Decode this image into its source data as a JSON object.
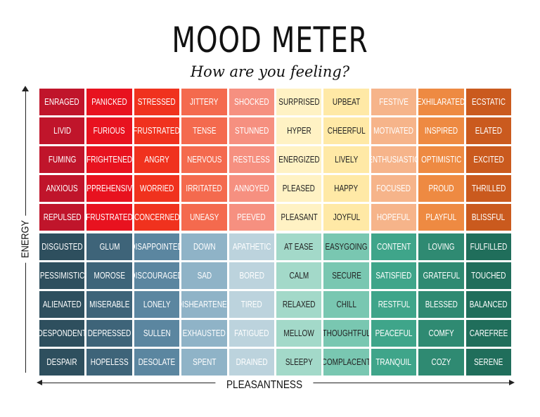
{
  "title": "MOOD METER",
  "subtitle": "How are you feeling?",
  "axes": {
    "y_label": "ENERGY",
    "x_label": "PLEASANTNESS"
  },
  "columns": 10,
  "cells": [
    {
      "label": "ENRAGED",
      "bg": "#c0152b",
      "fg": "#ffffff"
    },
    {
      "label": "PANICKED",
      "bg": "#e8121f",
      "fg": "#ffffff"
    },
    {
      "label": "STRESSED",
      "bg": "#f0321e",
      "fg": "#ffffff"
    },
    {
      "label": "JITTERY",
      "bg": "#f46a4e",
      "fg": "#ffffff"
    },
    {
      "label": "SHOCKED",
      "bg": "#f69080",
      "fg": "#ffffff"
    },
    {
      "label": "SURPRISED",
      "bg": "#fff2c4",
      "fg": "#222222"
    },
    {
      "label": "UPBEAT",
      "bg": "#ffe9a6",
      "fg": "#222222"
    },
    {
      "label": "FESTIVE",
      "bg": "#f6b48a",
      "fg": "#ffffff"
    },
    {
      "label": "EXHILARATED",
      "bg": "#ee8a42",
      "fg": "#ffffff"
    },
    {
      "label": "ECSTATIC",
      "bg": "#ca5a1e",
      "fg": "#ffffff"
    },
    {
      "label": "LIVID",
      "bg": "#c0152b",
      "fg": "#ffffff"
    },
    {
      "label": "FURIOUS",
      "bg": "#e8121f",
      "fg": "#ffffff"
    },
    {
      "label": "FRUSTRATED",
      "bg": "#f0321e",
      "fg": "#ffffff"
    },
    {
      "label": "TENSE",
      "bg": "#f46a4e",
      "fg": "#ffffff"
    },
    {
      "label": "STUNNED",
      "bg": "#f69080",
      "fg": "#ffffff"
    },
    {
      "label": "HYPER",
      "bg": "#fff2c4",
      "fg": "#222222"
    },
    {
      "label": "CHEERFUL",
      "bg": "#ffe9a6",
      "fg": "#222222"
    },
    {
      "label": "MOTIVATED",
      "bg": "#f6b48a",
      "fg": "#ffffff"
    },
    {
      "label": "INSPIRED",
      "bg": "#ee8a42",
      "fg": "#ffffff"
    },
    {
      "label": "ELATED",
      "bg": "#ca5a1e",
      "fg": "#ffffff"
    },
    {
      "label": "FUMING",
      "bg": "#c0152b",
      "fg": "#ffffff"
    },
    {
      "label": "FRIGHTENED",
      "bg": "#e8121f",
      "fg": "#ffffff"
    },
    {
      "label": "ANGRY",
      "bg": "#f0321e",
      "fg": "#ffffff"
    },
    {
      "label": "NERVOUS",
      "bg": "#f46a4e",
      "fg": "#ffffff"
    },
    {
      "label": "RESTLESS",
      "bg": "#f69080",
      "fg": "#ffffff"
    },
    {
      "label": "ENERGIZED",
      "bg": "#fff2c4",
      "fg": "#222222"
    },
    {
      "label": "LIVELY",
      "bg": "#ffe9a6",
      "fg": "#222222"
    },
    {
      "label": "ENTHUSIASTIC",
      "bg": "#f6b48a",
      "fg": "#ffffff"
    },
    {
      "label": "OPTIMISTIC",
      "bg": "#ee8a42",
      "fg": "#ffffff"
    },
    {
      "label": "EXCITED",
      "bg": "#ca5a1e",
      "fg": "#ffffff"
    },
    {
      "label": "ANXIOUS",
      "bg": "#c0152b",
      "fg": "#ffffff"
    },
    {
      "label": "APPREHENSIVE",
      "bg": "#e8121f",
      "fg": "#ffffff"
    },
    {
      "label": "WORRIED",
      "bg": "#f0321e",
      "fg": "#ffffff"
    },
    {
      "label": "IRRITATED",
      "bg": "#f46a4e",
      "fg": "#ffffff"
    },
    {
      "label": "ANNOYED",
      "bg": "#f69080",
      "fg": "#ffffff"
    },
    {
      "label": "PLEASED",
      "bg": "#fff2c4",
      "fg": "#222222"
    },
    {
      "label": "HAPPY",
      "bg": "#ffe9a6",
      "fg": "#222222"
    },
    {
      "label": "FOCUSED",
      "bg": "#f6b48a",
      "fg": "#ffffff"
    },
    {
      "label": "PROUD",
      "bg": "#ee8a42",
      "fg": "#ffffff"
    },
    {
      "label": "THRILLED",
      "bg": "#ca5a1e",
      "fg": "#ffffff"
    },
    {
      "label": "REPULSED",
      "bg": "#c0152b",
      "fg": "#ffffff"
    },
    {
      "label": "FRUSTRATED",
      "bg": "#e8121f",
      "fg": "#ffffff"
    },
    {
      "label": "CONCERNED",
      "bg": "#f0321e",
      "fg": "#ffffff"
    },
    {
      "label": "UNEASY",
      "bg": "#f46a4e",
      "fg": "#ffffff"
    },
    {
      "label": "PEEVED",
      "bg": "#f69080",
      "fg": "#ffffff"
    },
    {
      "label": "PLEASANT",
      "bg": "#fff2c4",
      "fg": "#222222"
    },
    {
      "label": "JOYFUL",
      "bg": "#ffe9a6",
      "fg": "#222222"
    },
    {
      "label": "HOPEFUL",
      "bg": "#f6b48a",
      "fg": "#ffffff"
    },
    {
      "label": "PLAYFUL",
      "bg": "#ee8a42",
      "fg": "#ffffff"
    },
    {
      "label": "BLISSFUL",
      "bg": "#ca5a1e",
      "fg": "#ffffff"
    },
    {
      "label": "DISGUSTED",
      "bg": "#2e4f5e",
      "fg": "#ffffff"
    },
    {
      "label": "GLUM",
      "bg": "#3e6479",
      "fg": "#ffffff"
    },
    {
      "label": "DISAPPOINTED",
      "bg": "#5b86a0",
      "fg": "#ffffff"
    },
    {
      "label": "DOWN",
      "bg": "#8fb3c7",
      "fg": "#ffffff"
    },
    {
      "label": "APATHETIC",
      "bg": "#bcd3dd",
      "fg": "#ffffff"
    },
    {
      "label": "AT EASE",
      "bg": "#a3d9c9",
      "fg": "#222222"
    },
    {
      "label": "EASYGOING",
      "bg": "#79c7b1",
      "fg": "#222222"
    },
    {
      "label": "CONTENT",
      "bg": "#3fa58a",
      "fg": "#ffffff"
    },
    {
      "label": "LOVING",
      "bg": "#2f8a72",
      "fg": "#ffffff"
    },
    {
      "label": "FULFILLED",
      "bg": "#206e5b",
      "fg": "#ffffff"
    },
    {
      "label": "PESSIMISTIC",
      "bg": "#2e4f5e",
      "fg": "#ffffff"
    },
    {
      "label": "MOROSE",
      "bg": "#3e6479",
      "fg": "#ffffff"
    },
    {
      "label": "DISCOURAGED",
      "bg": "#5b86a0",
      "fg": "#ffffff"
    },
    {
      "label": "SAD",
      "bg": "#8fb3c7",
      "fg": "#ffffff"
    },
    {
      "label": "BORED",
      "bg": "#bcd3dd",
      "fg": "#ffffff"
    },
    {
      "label": "CALM",
      "bg": "#a3d9c9",
      "fg": "#222222"
    },
    {
      "label": "SECURE",
      "bg": "#79c7b1",
      "fg": "#222222"
    },
    {
      "label": "SATISFIED",
      "bg": "#3fa58a",
      "fg": "#ffffff"
    },
    {
      "label": "GRATEFUL",
      "bg": "#2f8a72",
      "fg": "#ffffff"
    },
    {
      "label": "TOUCHED",
      "bg": "#206e5b",
      "fg": "#ffffff"
    },
    {
      "label": "ALIENATED",
      "bg": "#2e4f5e",
      "fg": "#ffffff"
    },
    {
      "label": "MISERABLE",
      "bg": "#3e6479",
      "fg": "#ffffff"
    },
    {
      "label": "LONELY",
      "bg": "#5b86a0",
      "fg": "#ffffff"
    },
    {
      "label": "DISHEARTENED",
      "bg": "#8fb3c7",
      "fg": "#ffffff"
    },
    {
      "label": "TIRED",
      "bg": "#bcd3dd",
      "fg": "#ffffff"
    },
    {
      "label": "RELAXED",
      "bg": "#a3d9c9",
      "fg": "#222222"
    },
    {
      "label": "CHILL",
      "bg": "#79c7b1",
      "fg": "#222222"
    },
    {
      "label": "RESTFUL",
      "bg": "#3fa58a",
      "fg": "#ffffff"
    },
    {
      "label": "BLESSED",
      "bg": "#2f8a72",
      "fg": "#ffffff"
    },
    {
      "label": "BALANCED",
      "bg": "#206e5b",
      "fg": "#ffffff"
    },
    {
      "label": "DESPONDENT",
      "bg": "#2e4f5e",
      "fg": "#ffffff"
    },
    {
      "label": "DEPRESSED",
      "bg": "#3e6479",
      "fg": "#ffffff"
    },
    {
      "label": "SULLEN",
      "bg": "#5b86a0",
      "fg": "#ffffff"
    },
    {
      "label": "EXHAUSTED",
      "bg": "#8fb3c7",
      "fg": "#ffffff"
    },
    {
      "label": "FATIGUED",
      "bg": "#bcd3dd",
      "fg": "#ffffff"
    },
    {
      "label": "MELLOW",
      "bg": "#a3d9c9",
      "fg": "#222222"
    },
    {
      "label": "THOUGHTFUL",
      "bg": "#79c7b1",
      "fg": "#222222"
    },
    {
      "label": "PEACEFUL",
      "bg": "#3fa58a",
      "fg": "#ffffff"
    },
    {
      "label": "COMFY",
      "bg": "#2f8a72",
      "fg": "#ffffff"
    },
    {
      "label": "CAREFREE",
      "bg": "#206e5b",
      "fg": "#ffffff"
    },
    {
      "label": "DESPAIR",
      "bg": "#2e4f5e",
      "fg": "#ffffff"
    },
    {
      "label": "HOPELESS",
      "bg": "#3e6479",
      "fg": "#ffffff"
    },
    {
      "label": "DESOLATE",
      "bg": "#5b86a0",
      "fg": "#ffffff"
    },
    {
      "label": "SPENT",
      "bg": "#8fb3c7",
      "fg": "#ffffff"
    },
    {
      "label": "DRAINED",
      "bg": "#bcd3dd",
      "fg": "#ffffff"
    },
    {
      "label": "SLEEPY",
      "bg": "#a3d9c9",
      "fg": "#222222"
    },
    {
      "label": "COMPLACENT",
      "bg": "#79c7b1",
      "fg": "#222222"
    },
    {
      "label": "TRANQUIL",
      "bg": "#3fa58a",
      "fg": "#ffffff"
    },
    {
      "label": "COZY",
      "bg": "#2f8a72",
      "fg": "#ffffff"
    },
    {
      "label": "SERENE",
      "bg": "#206e5b",
      "fg": "#ffffff"
    }
  ]
}
